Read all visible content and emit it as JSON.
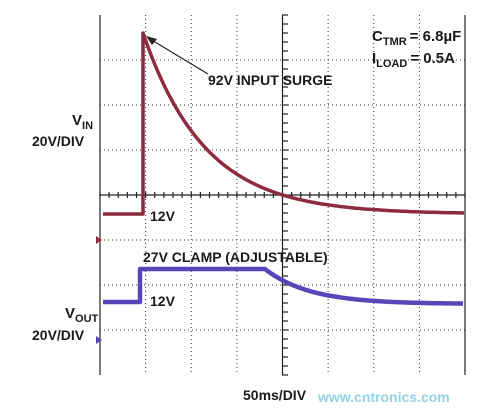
{
  "annotations": {
    "ctmr": {
      "symbol": "C",
      "subscript": "TMR",
      "value": "= 6.8µF"
    },
    "iload": {
      "symbol": "I",
      "subscript": "LOAD",
      "value": "= 0.5A"
    },
    "surge": "92V INPUT SURGE",
    "clamp": "27V CLAMP (ADJUSTABLE)",
    "vin_level": "12V",
    "vout_level": "12V"
  },
  "channels": {
    "vin": {
      "symbol": "V",
      "subscript": "IN",
      "scale": "20V/DIV"
    },
    "vout": {
      "symbol": "V",
      "subscript": "OUT",
      "scale": "20V/DIV"
    }
  },
  "timebase": "50ms/DIV",
  "watermark": "www.cntronics.com"
}
